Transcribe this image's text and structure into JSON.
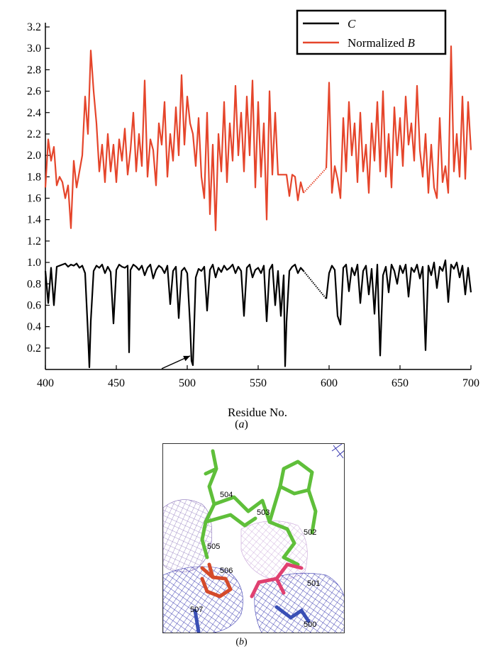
{
  "figure": {
    "caption_a": "a",
    "caption_b": "b"
  },
  "chart_data": {
    "type": "line",
    "xlabel": "Residue No.",
    "ylabel": "",
    "xlim": [
      400,
      700
    ],
    "ylim": [
      0,
      3.2
    ],
    "x_ticks": [
      400,
      450,
      500,
      550,
      600,
      650,
      700
    ],
    "y_ticks": [
      0.2,
      0.4,
      0.6,
      0.8,
      1.0,
      1.2,
      1.4,
      1.6,
      1.8,
      2.0,
      2.2,
      2.4,
      2.6,
      2.8,
      3.0,
      3.2
    ],
    "legend": {
      "position": "top-right"
    },
    "gap": {
      "start": 582,
      "end": 598
    },
    "series": [
      {
        "name": "C",
        "color": "#000000",
        "x": [
          400,
          402,
          404,
          406,
          408,
          410,
          412,
          414,
          416,
          418,
          420,
          422,
          424,
          426,
          428,
          430,
          431,
          432,
          434,
          436,
          438,
          440,
          442,
          444,
          446,
          448,
          450,
          452,
          454,
          456,
          458,
          459,
          460,
          462,
          464,
          466,
          468,
          470,
          472,
          474,
          476,
          478,
          480,
          482,
          484,
          486,
          488,
          490,
          492,
          494,
          496,
          498,
          500,
          502,
          503,
          504,
          506,
          508,
          510,
          512,
          514,
          516,
          518,
          520,
          522,
          524,
          526,
          528,
          530,
          532,
          534,
          536,
          538,
          540,
          542,
          544,
          546,
          548,
          550,
          552,
          554,
          556,
          558,
          560,
          562,
          564,
          566,
          568,
          569,
          570,
          572,
          574,
          576,
          578,
          580,
          582,
          598,
          600,
          602,
          604,
          606,
          608,
          610,
          612,
          614,
          616,
          618,
          620,
          622,
          624,
          626,
          628,
          630,
          632,
          634,
          636,
          638,
          640,
          642,
          644,
          646,
          648,
          650,
          652,
          654,
          656,
          658,
          660,
          662,
          664,
          666,
          668,
          670,
          672,
          674,
          676,
          678,
          680,
          682,
          684,
          686,
          688,
          690,
          692,
          694,
          696,
          698,
          700
        ],
        "values": [
          0.92,
          0.62,
          0.95,
          0.6,
          0.96,
          0.97,
          0.98,
          0.99,
          0.96,
          0.98,
          0.97,
          0.99,
          0.95,
          0.97,
          0.9,
          0.34,
          0.02,
          0.45,
          0.92,
          0.97,
          0.95,
          0.98,
          0.9,
          0.96,
          0.91,
          0.43,
          0.93,
          0.98,
          0.96,
          0.95,
          0.97,
          0.16,
          0.93,
          0.98,
          0.96,
          0.93,
          0.97,
          0.88,
          0.95,
          0.98,
          0.85,
          0.93,
          0.97,
          0.95,
          0.9,
          0.97,
          0.61,
          0.92,
          0.96,
          0.48,
          0.92,
          0.95,
          0.9,
          0.42,
          0.08,
          0.04,
          0.86,
          0.94,
          0.92,
          0.96,
          0.55,
          0.93,
          0.98,
          0.86,
          0.95,
          0.91,
          0.97,
          0.93,
          0.95,
          0.98,
          0.9,
          0.96,
          0.92,
          0.5,
          0.95,
          0.98,
          0.86,
          0.93,
          0.95,
          0.9,
          0.97,
          0.45,
          0.93,
          0.98,
          0.6,
          0.92,
          0.5,
          0.88,
          0.03,
          0.45,
          0.92,
          0.96,
          0.98,
          0.9,
          0.95,
          0.92,
          0.66,
          0.9,
          0.97,
          0.93,
          0.5,
          0.42,
          0.95,
          0.98,
          0.73,
          0.95,
          0.88,
          0.98,
          0.62,
          0.92,
          0.97,
          0.7,
          0.94,
          0.52,
          0.98,
          0.13,
          0.88,
          0.96,
          0.72,
          0.98,
          0.92,
          0.8,
          0.97,
          0.9,
          0.98,
          0.68,
          0.95,
          0.91,
          0.98,
          0.85,
          0.96,
          0.18,
          0.97,
          0.88,
          1.0,
          0.76,
          0.96,
          0.92,
          1.02,
          0.63,
          0.98,
          0.94,
          1.0,
          0.86,
          0.97,
          0.7,
          0.95,
          0.72
        ]
      },
      {
        "name": "Normalized B",
        "color": "#e5452b",
        "x": [
          400,
          402,
          404,
          406,
          408,
          410,
          412,
          414,
          416,
          418,
          420,
          422,
          424,
          426,
          428,
          430,
          432,
          434,
          436,
          438,
          440,
          442,
          444,
          446,
          448,
          450,
          452,
          454,
          456,
          458,
          460,
          462,
          464,
          466,
          468,
          470,
          472,
          474,
          476,
          478,
          480,
          482,
          484,
          486,
          488,
          490,
          492,
          494,
          496,
          498,
          500,
          502,
          504,
          506,
          508,
          510,
          512,
          514,
          516,
          518,
          520,
          522,
          524,
          526,
          528,
          530,
          532,
          534,
          536,
          538,
          540,
          542,
          544,
          546,
          548,
          550,
          552,
          554,
          556,
          558,
          560,
          562,
          564,
          566,
          568,
          570,
          572,
          574,
          576,
          578,
          580,
          582,
          598,
          600,
          602,
          604,
          606,
          608,
          610,
          612,
          614,
          616,
          618,
          620,
          622,
          624,
          626,
          628,
          630,
          632,
          634,
          636,
          638,
          640,
          642,
          644,
          646,
          648,
          650,
          652,
          654,
          656,
          658,
          660,
          662,
          664,
          666,
          668,
          670,
          672,
          674,
          676,
          678,
          680,
          682,
          684,
          686,
          688,
          690,
          692,
          694,
          696,
          698,
          700
        ],
        "values": [
          1.7,
          2.15,
          1.95,
          2.08,
          1.72,
          1.8,
          1.75,
          1.6,
          1.72,
          1.32,
          1.95,
          1.7,
          1.85,
          2.0,
          2.55,
          2.2,
          2.98,
          2.6,
          2.3,
          1.85,
          2.1,
          1.75,
          2.2,
          1.85,
          2.1,
          1.75,
          2.15,
          1.95,
          2.25,
          1.82,
          2.05,
          2.4,
          1.85,
          2.2,
          1.9,
          2.7,
          1.8,
          2.15,
          2.05,
          1.72,
          2.3,
          2.1,
          2.5,
          1.8,
          2.2,
          1.95,
          2.45,
          2.0,
          2.75,
          2.1,
          2.55,
          2.3,
          2.2,
          1.9,
          2.35,
          1.8,
          1.6,
          2.4,
          1.45,
          2.1,
          1.3,
          2.2,
          1.85,
          2.5,
          1.75,
          2.3,
          1.95,
          2.65,
          2.0,
          2.4,
          1.85,
          2.55,
          2.0,
          2.7,
          1.7,
          2.5,
          1.8,
          2.3,
          1.4,
          2.6,
          1.82,
          2.4,
          1.82,
          1.82,
          1.82,
          1.82,
          1.62,
          1.82,
          1.8,
          1.58,
          1.75,
          1.65,
          1.88,
          2.68,
          1.65,
          1.9,
          1.78,
          1.6,
          2.35,
          1.85,
          2.5,
          2.0,
          2.3,
          1.75,
          2.4,
          1.85,
          2.1,
          1.65,
          2.3,
          1.95,
          2.5,
          1.85,
          2.6,
          1.8,
          2.2,
          1.7,
          2.45,
          2.0,
          2.35,
          1.9,
          2.55,
          2.1,
          2.3,
          1.95,
          2.65,
          2.05,
          1.8,
          2.2,
          1.65,
          2.1,
          1.7,
          1.6,
          2.35,
          1.75,
          1.9,
          1.65,
          3.02,
          1.85,
          2.2,
          1.8,
          2.55,
          1.78,
          2.5,
          2.05
        ]
      }
    ],
    "annotations": [
      {
        "type": "arrow",
        "to_x": 503,
        "to_y": 0.14,
        "color": "#000000"
      }
    ]
  },
  "panel_b": {
    "residue_labels": [
      "504",
      "503",
      "502",
      "505",
      "506",
      "501",
      "507",
      "500"
    ]
  }
}
